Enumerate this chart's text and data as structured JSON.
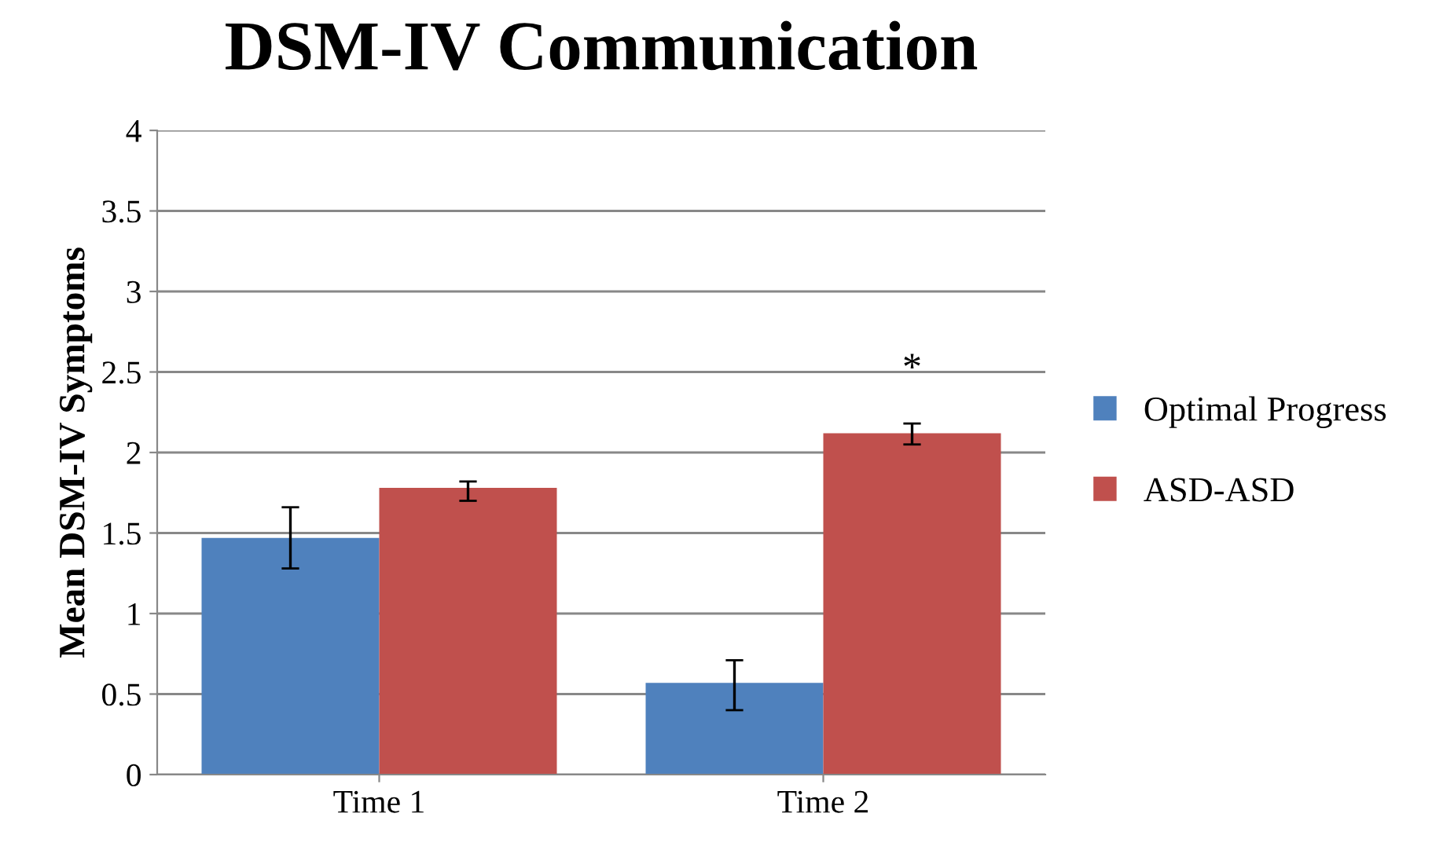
{
  "chart_data": {
    "type": "bar",
    "title": "DSM-IV Communication",
    "ylabel": "Mean DSM-IV Symptoms",
    "categories": [
      "Time 1",
      "Time 2"
    ],
    "series": [
      {
        "name": "Optimal Progress",
        "color": "#4f81bd",
        "values": [
          1.47,
          0.57
        ],
        "errors": [
          [
            1.28,
            1.66
          ],
          [
            0.4,
            0.71
          ]
        ]
      },
      {
        "name": "ASD-ASD",
        "color": "#c0504d",
        "values": [
          1.78,
          2.12
        ],
        "errors": [
          [
            1.7,
            1.82
          ],
          [
            2.05,
            2.18
          ]
        ]
      }
    ],
    "annotations": [
      "*"
    ],
    "ylim": [
      0,
      4
    ],
    "yticks": [
      0,
      0.5,
      1,
      1.5,
      2,
      2.5,
      3,
      3.5,
      4
    ],
    "grid": "y",
    "legend": "right"
  }
}
